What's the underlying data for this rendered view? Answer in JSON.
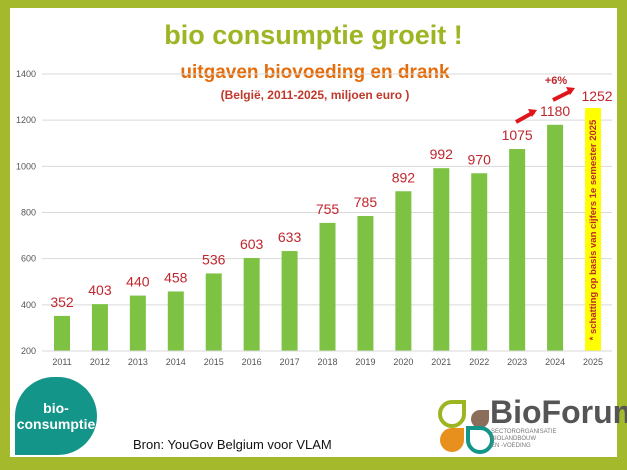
{
  "chart_data": {
    "type": "bar",
    "title": "bio consumptie groeit !",
    "subtitle": "uitgaven biovoeding en drank",
    "subtitle2": "(België, 2011-2025, miljoen euro )",
    "categories": [
      "2011",
      "2012",
      "2013",
      "2014",
      "2015",
      "2016",
      "2017",
      "2018",
      "2019",
      "2020",
      "2021",
      "2022",
      "2023",
      "2024",
      "2025"
    ],
    "values": [
      352,
      403,
      440,
      458,
      536,
      603,
      633,
      755,
      785,
      892,
      992,
      970,
      1075,
      1180,
      1252
    ],
    "ylim": [
      200,
      1400
    ],
    "yticks": [
      "200",
      "400",
      "600",
      "800",
      "1000",
      "1200",
      "1400"
    ],
    "grid": true,
    "bar_color": "#7dc242",
    "estimate_color": "#ffff00",
    "label_color": "#c0262d",
    "annotation": "+6%",
    "estimate_note": "* schatting op basis van cijfers 1e semester 2025"
  },
  "badge": "bio-consumptie",
  "badge_lines": [
    "bio-",
    "consumptie"
  ],
  "source": "Bron: YouGov Belgium voor VLAM",
  "logo": {
    "name": "BioForum",
    "lines": [
      "SECTORORGANISATIE",
      "BIOLANDBOUW",
      "EN -VOEDING"
    ]
  }
}
